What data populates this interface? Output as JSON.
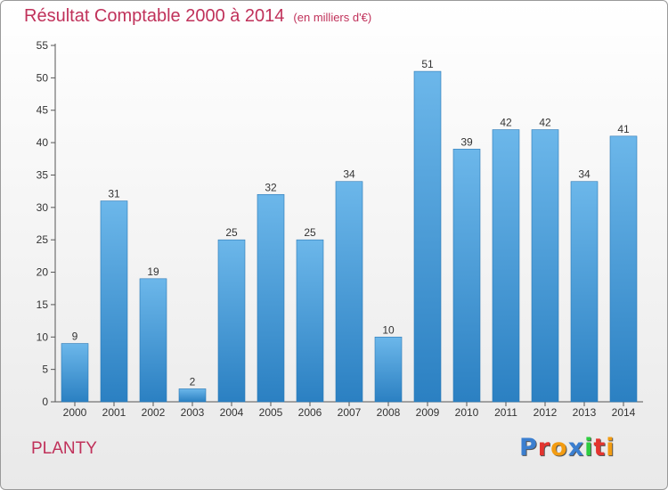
{
  "header": {
    "title": "Résultat Comptable 2000 à 2014",
    "unit": "(en milliers d'€)"
  },
  "footer": {
    "place": "PLANTY",
    "brand": "Proxiti"
  },
  "brand_letters": [
    {
      "ch": "P",
      "color": "#3b7fd0"
    },
    {
      "ch": "r",
      "color": "#e3342f"
    },
    {
      "ch": "o",
      "color": "#f39c12"
    },
    {
      "ch": "x",
      "color": "#3b7fd0"
    },
    {
      "ch": "i",
      "color": "#2ecc40"
    },
    {
      "ch": "t",
      "color": "#e3342f"
    },
    {
      "ch": "i",
      "color": "#f39c12"
    }
  ],
  "colors": {
    "bar_light": "#6cb7ea",
    "bar_dark": "#2b80c2",
    "accent": "#c0315a"
  },
  "chart_data": {
    "type": "bar",
    "title": "Résultat Comptable 2000 à 2014",
    "subtitle": "(en milliers d'€)",
    "xlabel": "",
    "ylabel": "",
    "categories": [
      "2000",
      "2001",
      "2002",
      "2003",
      "2004",
      "2005",
      "2006",
      "2007",
      "2008",
      "2009",
      "2010",
      "2011",
      "2012",
      "2013",
      "2014"
    ],
    "values": [
      9,
      31,
      19,
      2,
      25,
      32,
      25,
      34,
      10,
      51,
      39,
      42,
      42,
      34,
      41
    ],
    "ylim": [
      0,
      55
    ],
    "yticks": [
      0,
      5,
      10,
      15,
      20,
      25,
      30,
      35,
      40,
      45,
      50,
      55
    ],
    "grid": false,
    "legend": "none"
  }
}
